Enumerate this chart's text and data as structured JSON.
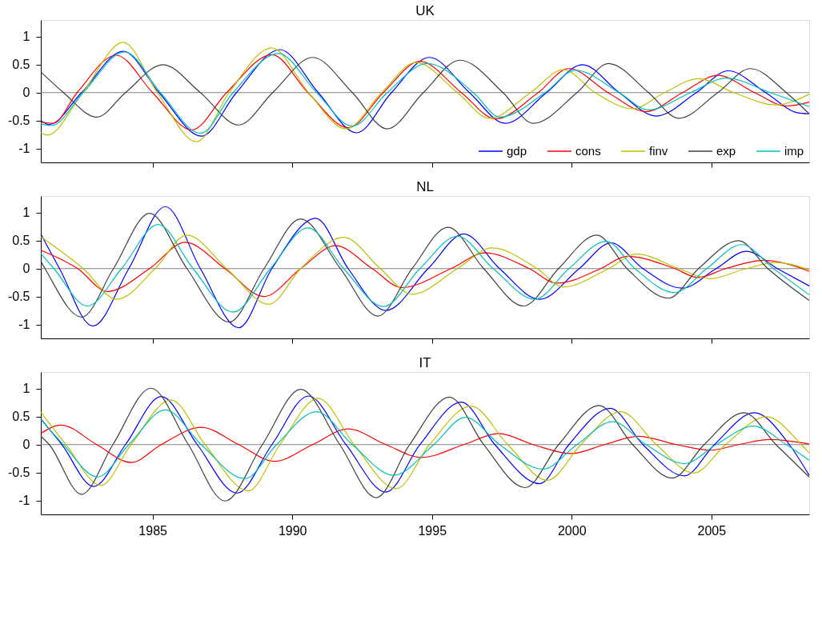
{
  "chart_data": [
    {
      "type": "line",
      "title": "UK",
      "xlim": [
        1981,
        2008.5
      ],
      "ylim": [
        -1.25,
        1.3
      ],
      "xticks": [
        1985,
        1990,
        1995,
        2000,
        2005
      ],
      "yticks": [
        -1,
        -0.5,
        0,
        0.5,
        1
      ],
      "grid": false,
      "legend": "bottom right",
      "tick_labels": "y",
      "ref_lines": [
        {
          "axis": "y",
          "value": 0,
          "color": "#808080"
        }
      ],
      "series": [
        {
          "name": "gdp",
          "color": "#0000ff",
          "x": [
            1981,
            1981.3,
            1982.46,
            1983.95,
            1985.23,
            1986.75,
            1988.0,
            1989.56,
            1990.93,
            1992.3,
            1993.55,
            1994.91,
            1996.34,
            1997.62,
            1999.1,
            2000.38,
            2001.7,
            2003.03,
            2004.46,
            2005.6,
            2006.94,
            2008.08,
            2008.5
          ],
          "values": [
            -0.5,
            -0.57,
            0,
            0.74,
            0,
            -0.78,
            0,
            0.77,
            0,
            -0.72,
            0,
            0.63,
            0,
            -0.55,
            0,
            0.5,
            0,
            -0.42,
            0,
            0.39,
            0,
            -0.36,
            -0.38
          ]
        },
        {
          "name": "cons",
          "color": "#ff0000",
          "x": [
            1981,
            1981.44,
            1982.3,
            1983.7,
            1985.0,
            1986.4,
            1987.65,
            1989.27,
            1990.56,
            1992.0,
            1993.26,
            1994.57,
            1996.05,
            1997.28,
            1998.8,
            1999.9,
            2001.3,
            2002.66,
            2003.97,
            2005.23,
            2006.54,
            2007.68,
            2008.5
          ],
          "values": [
            -0.53,
            -0.55,
            0,
            0.67,
            0,
            -0.67,
            0,
            0.68,
            0,
            -0.63,
            0,
            0.56,
            0,
            -0.47,
            0,
            0.43,
            0,
            -0.34,
            0,
            0.31,
            0,
            -0.24,
            -0.17
          ]
        },
        {
          "name": "finv",
          "color": "#bfbf00",
          "x": [
            1981,
            1981.24,
            1982.5,
            1983.95,
            1985.17,
            1986.57,
            1987.74,
            1989.27,
            1990.58,
            1991.92,
            1993.2,
            1994.43,
            1995.91,
            1997.05,
            1998.53,
            1999.7,
            2000.84,
            2002.18,
            2003.32,
            2004.54,
            2005.8,
            2007.3,
            2008.5
          ],
          "values": [
            -0.72,
            -0.76,
            0,
            0.9,
            0,
            -0.88,
            0,
            0.8,
            0,
            -0.65,
            0,
            0.54,
            0,
            -0.46,
            0,
            0.41,
            0,
            -0.29,
            0,
            0.25,
            0,
            -0.22,
            -0.03
          ]
        },
        {
          "name": "exp",
          "color": "#404040",
          "x": [
            1981,
            1981.81,
            1983.0,
            1984.03,
            1985.37,
            1986.71,
            1988.08,
            1989.3,
            1990.73,
            1992.15,
            1993.4,
            1994.69,
            1996.0,
            1997.54,
            1998.62,
            2000.19,
            2001.32,
            2002.75,
            2003.83,
            2005.23,
            2006.4,
            2007.68,
            2008.5
          ],
          "values": [
            0.37,
            0,
            -0.44,
            0,
            0.5,
            0,
            -0.58,
            0,
            0.63,
            0,
            -0.65,
            0,
            0.58,
            0,
            -0.55,
            0,
            0.52,
            0,
            -0.46,
            0,
            0.43,
            0,
            -0.38
          ]
        },
        {
          "name": "imp",
          "color": "#00bfbf",
          "x": [
            1981,
            1981.38,
            1982.52,
            1984.0,
            1985.28,
            1986.71,
            1987.88,
            1989.5,
            1990.87,
            1992.15,
            1993.4,
            1994.83,
            1996.48,
            1997.43,
            1999.05,
            2000.13,
            2001.7,
            2002.75,
            2004.26,
            2005.54,
            2007.1,
            2008.5
          ],
          "values": [
            -0.56,
            -0.59,
            0,
            0.73,
            0,
            -0.73,
            0,
            0.7,
            0,
            -0.6,
            0,
            0.52,
            0,
            -0.44,
            0,
            0.4,
            0,
            -0.31,
            0,
            0.26,
            0,
            -0.25
          ]
        }
      ]
    },
    {
      "type": "line",
      "title": "NL",
      "xlim": [
        1981,
        2008.5
      ],
      "ylim": [
        -1.25,
        1.3
      ],
      "xticks": [
        1985,
        1990,
        1995,
        2000,
        2005
      ],
      "yticks": [
        -1,
        -0.5,
        0,
        0.5,
        1
      ],
      "grid": false,
      "tick_labels": "y",
      "ref_lines": [
        {
          "axis": "y",
          "value": 0,
          "color": "#808080"
        }
      ],
      "series": [
        {
          "color": "#0000ff",
          "x": [
            1981,
            1981.67,
            1982.86,
            1984.15,
            1985.46,
            1986.71,
            1988.08,
            1989.27,
            1990.84,
            1992.0,
            1993.35,
            1994.86,
            1996.14,
            1997.42,
            1998.85,
            2000.27,
            2001.41,
            2002.55,
            2003.95,
            2005.17,
            2006.25,
            2007.36,
            2008.5
          ],
          "values": [
            0.62,
            0,
            -1.03,
            0,
            1.11,
            0,
            -1.06,
            0,
            0.9,
            0,
            -0.75,
            0,
            0.62,
            0,
            -0.55,
            0,
            0.46,
            0,
            -0.35,
            0,
            0.31,
            0,
            -0.31
          ]
        },
        {
          "color": "#ff0000",
          "x": [
            1981,
            1982.32,
            1983.38,
            1984.89,
            1986.17,
            1987.59,
            1988.99,
            1990.3,
            1991.55,
            1992.86,
            1993.92,
            1995.68,
            1996.9,
            1998.48,
            1999.47,
            2001.04,
            2001.98,
            2003.69,
            2004.52,
            2005.51,
            2006.88,
            2008.25,
            2008.5
          ],
          "values": [
            0.33,
            0,
            -0.41,
            0,
            0.47,
            0,
            -0.5,
            0,
            0.41,
            0,
            -0.34,
            0,
            0.28,
            0,
            -0.26,
            0,
            0.22,
            0,
            -0.16,
            0,
            0.15,
            0,
            -0.05
          ]
        },
        {
          "color": "#bfbf00",
          "x": [
            1981,
            1982.52,
            1983.72,
            1985.09,
            1986.23,
            1987.65,
            1989.16,
            1990.3,
            1991.84,
            1993.15,
            1994.29,
            1995.91,
            1997.14,
            1998.76,
            1999.7,
            2001.32,
            2002.32,
            2003.83,
            2004.94,
            2006.25,
            2007.3,
            2008.5
          ],
          "values": [
            0.57,
            0,
            -0.55,
            0,
            0.6,
            0,
            -0.64,
            0,
            0.56,
            0,
            -0.46,
            0,
            0.37,
            0,
            -0.33,
            0,
            0.26,
            0,
            -0.18,
            0,
            0.11,
            -0.02
          ]
        },
        {
          "color": "#404040",
          "x": [
            1981,
            1981.15,
            1982.46,
            1983.6,
            1984.89,
            1986.23,
            1987.74,
            1988.99,
            1990.3,
            1991.72,
            1993.06,
            1994.29,
            1995.57,
            1996.85,
            1998.28,
            1999.53,
            2000.9,
            2001.98,
            2003.46,
            2004.54,
            2005.97,
            2007.02,
            2008.5
          ],
          "values": [
            0.13,
            0,
            -0.87,
            0,
            0.99,
            0,
            -0.96,
            0,
            0.89,
            0,
            -0.85,
            0,
            0.74,
            0,
            -0.67,
            0,
            0.6,
            0,
            -0.53,
            0,
            0.5,
            0,
            -0.57
          ]
        },
        {
          "color": "#00bfbf",
          "x": [
            1981,
            1981.47,
            1982.66,
            1983.89,
            1985.2,
            1986.45,
            1987.88,
            1989.22,
            1990.56,
            1991.84,
            1993.26,
            1994.57,
            1995.91,
            1997.19,
            1998.68,
            1999.9,
            2001.24,
            2002.26,
            2003.69,
            2004.83,
            2006.08,
            2007.22,
            2008.5
          ],
          "values": [
            0.27,
            0,
            -0.67,
            0,
            0.79,
            0,
            -0.78,
            0,
            0.73,
            0,
            -0.68,
            0,
            0.58,
            0,
            -0.55,
            0,
            0.49,
            0,
            -0.43,
            0,
            0.43,
            0,
            -0.47
          ]
        }
      ]
    },
    {
      "type": "line",
      "title": "IT",
      "xlim": [
        1981,
        2008.5
      ],
      "ylim": [
        -1.25,
        1.3
      ],
      "xticks": [
        1985,
        1990,
        1995,
        2000,
        2005
      ],
      "yticks": [
        -1,
        -0.5,
        0,
        0.5,
        1
      ],
      "grid": false,
      "ref_lines": [
        {
          "axis": "y",
          "value": 0,
          "color": "#808080"
        }
      ],
      "series": [
        {
          "color": "#0000ff",
          "x": [
            1981,
            1981.75,
            1982.89,
            1984.03,
            1985.31,
            1986.6,
            1988.02,
            1989.27,
            1990.58,
            1991.92,
            1993.35,
            1994.57,
            1996.05,
            1997.25,
            1998.85,
            1999.9,
            2001.38,
            2002.55,
            2004.03,
            2005.11,
            2006.54,
            2007.79,
            2008.5
          ],
          "values": [
            0.46,
            0,
            -0.75,
            0,
            0.86,
            0,
            -0.87,
            0,
            0.87,
            0,
            -0.85,
            0,
            0.76,
            0,
            -0.7,
            0,
            0.65,
            0,
            -0.56,
            0,
            0.57,
            0,
            -0.55
          ]
        },
        {
          "color": "#ff0000",
          "x": [
            1981,
            1981.72,
            1983.0,
            1984.23,
            1985.31,
            1986.74,
            1988.08,
            1989.36,
            1990.73,
            1992.0,
            1993.35,
            1994.63,
            1996.14,
            1997.39,
            1998.62,
            1999.99,
            2001.18,
            2002.38,
            2003.75,
            2004.97,
            2005.97,
            2007.1,
            2008.5
          ],
          "values": [
            0.2,
            0.35,
            0,
            -0.32,
            0,
            0.31,
            0,
            -0.3,
            0,
            0.28,
            0,
            -0.23,
            0,
            0.2,
            0,
            -0.16,
            0,
            0.15,
            0,
            -0.1,
            0,
            0.09,
            0.01
          ]
        },
        {
          "color": "#bfbf00",
          "x": [
            1981,
            1981.9,
            1983.15,
            1984.23,
            1985.66,
            1986.88,
            1988.42,
            1989.56,
            1990.93,
            1992.21,
            1993.72,
            1994.91,
            1996.4,
            1997.71,
            1999.13,
            2000.33,
            2001.75,
            2003.03,
            2004.37,
            2005.51,
            2006.97,
            2008.22,
            2008.5
          ],
          "values": [
            0.58,
            0,
            -0.73,
            0,
            0.8,
            0,
            -0.83,
            0,
            0.83,
            0,
            -0.79,
            0,
            0.69,
            0,
            -0.64,
            0,
            0.59,
            0,
            -0.51,
            0,
            0.5,
            0,
            -0.15
          ]
        },
        {
          "color": "#404040",
          "x": [
            1981,
            1981.3,
            1982.46,
            1983.58,
            1984.94,
            1986.28,
            1987.59,
            1988.93,
            1990.3,
            1991.7,
            1993.0,
            1994.2,
            1995.63,
            1996.85,
            1998.33,
            1999.53,
            2000.98,
            2002.18,
            2003.6,
            2004.74,
            2006.17,
            2007.31,
            2008.5
          ],
          "values": [
            0.15,
            0,
            -0.89,
            0,
            1.01,
            0,
            -1.01,
            0,
            0.99,
            0,
            -0.95,
            0,
            0.85,
            0,
            -0.77,
            0,
            0.7,
            0,
            -0.6,
            0,
            0.57,
            0,
            -0.58
          ]
        },
        {
          "color": "#00bfbf",
          "x": [
            1981,
            1981.81,
            1983.03,
            1984.15,
            1985.46,
            1986.74,
            1988.3,
            1989.44,
            1990.87,
            1992.15,
            1993.63,
            1995.06,
            1996.2,
            1997.42,
            1998.96,
            2000.19,
            2001.47,
            2002.66,
            2004.03,
            2005.17,
            2006.51,
            2007.68,
            2008.5
          ],
          "values": [
            0.45,
            0,
            -0.58,
            0,
            0.62,
            0,
            -0.61,
            0,
            0.59,
            0,
            -0.55,
            0,
            0.49,
            0,
            -0.44,
            0,
            0.41,
            0,
            -0.34,
            0,
            0.33,
            0,
            -0.28
          ]
        }
      ]
    }
  ]
}
